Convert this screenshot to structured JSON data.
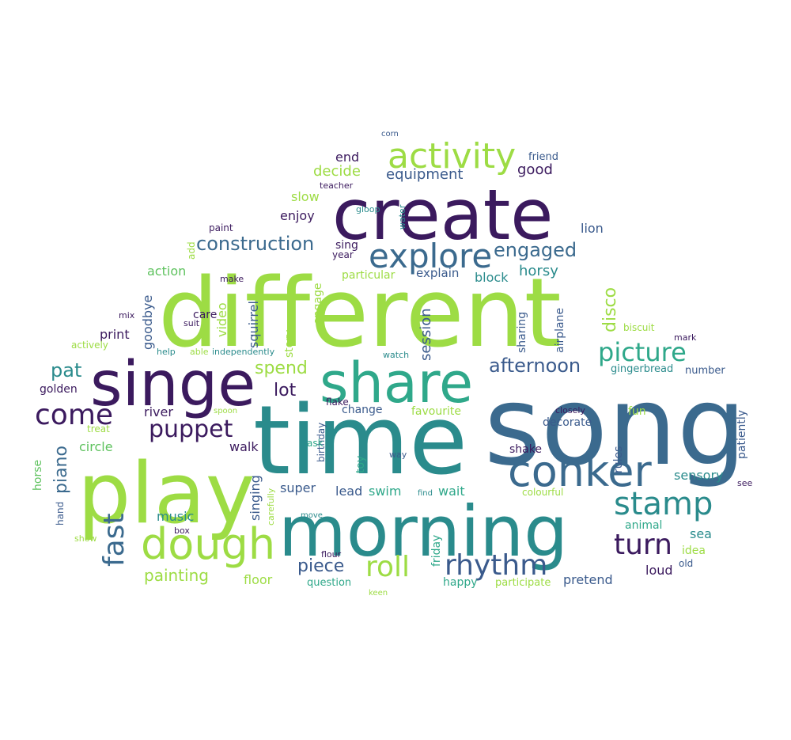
{
  "palette": {
    "dark_purple": "#3b1a5e",
    "navy": "#3a5a8c",
    "slate_blue": "#3b6a8e",
    "teal": "#2a8b8c",
    "sea_green": "#2fa88a",
    "green": "#5ec25e",
    "lime": "#9ddc44"
  },
  "words": [
    {
      "text": "different",
      "color": "#9ddc44"
    },
    {
      "text": "song",
      "color": "#3b6a8e"
    },
    {
      "text": "time",
      "color": "#2a8b8c"
    },
    {
      "text": "morning",
      "color": "#2a8b8c"
    },
    {
      "text": "create",
      "color": "#3b1a5e"
    },
    {
      "text": "play",
      "color": "#9ddc44"
    },
    {
      "text": "singe",
      "color": "#3b1a5e"
    },
    {
      "text": "share",
      "color": "#2fa88a"
    },
    {
      "text": "conker",
      "color": "#3b6a8e"
    },
    {
      "text": "dough",
      "color": "#9ddc44"
    },
    {
      "text": "activity",
      "color": "#9ddc44"
    },
    {
      "text": "explore",
      "color": "#3b6a8e"
    },
    {
      "text": "stamp",
      "color": "#2a8b8c"
    },
    {
      "text": "rhythm",
      "color": "#3a5a8c"
    },
    {
      "text": "roll",
      "color": "#9ddc44"
    },
    {
      "text": "turn",
      "color": "#3b1a5e"
    },
    {
      "text": "come",
      "color": "#3b1a5e"
    },
    {
      "text": "picture",
      "color": "#2fa88a"
    },
    {
      "text": "puppet",
      "color": "#3b1a5e"
    },
    {
      "text": "construction",
      "color": "#3b6a8e"
    },
    {
      "text": "engaged",
      "color": "#3b6a8e"
    },
    {
      "text": "fast",
      "color": "#3b6a8e"
    },
    {
      "text": "afternoon",
      "color": "#3a5a8c"
    },
    {
      "text": "equipment",
      "color": "#3a5a8c"
    },
    {
      "text": "piece",
      "color": "#3a5a8c"
    },
    {
      "text": "lot",
      "color": "#3b1a5e"
    },
    {
      "text": "spend",
      "color": "#9ddc44"
    },
    {
      "text": "pat",
      "color": "#2a8b8c"
    },
    {
      "text": "piano",
      "color": "#3b6a8e"
    },
    {
      "text": "painting",
      "color": "#9ddc44"
    },
    {
      "text": "disco",
      "color": "#9ddc44"
    },
    {
      "text": "good",
      "color": "#3b1a5e"
    },
    {
      "text": "decide",
      "color": "#9ddc44"
    },
    {
      "text": "end",
      "color": "#3b1a5e"
    },
    {
      "text": "action",
      "color": "#5ec25e"
    },
    {
      "text": "slow",
      "color": "#9ddc44"
    },
    {
      "text": "enjoy",
      "color": "#3b1a5e"
    },
    {
      "text": "lion",
      "color": "#3a5a8c"
    },
    {
      "text": "horsy",
      "color": "#2a8b8c"
    },
    {
      "text": "block",
      "color": "#2a8b8c"
    },
    {
      "text": "session",
      "color": "#3a5a8c"
    },
    {
      "text": "sing",
      "color": "#3b1a5e"
    },
    {
      "text": "year",
      "color": "#3b1a5e"
    },
    {
      "text": "explain",
      "color": "#3a5a8c"
    },
    {
      "text": "particular",
      "color": "#9ddc44"
    },
    {
      "text": "print",
      "color": "#3b1a5e"
    },
    {
      "text": "goodbye",
      "color": "#3a5a8c"
    },
    {
      "text": "video",
      "color": "#9ddc44"
    },
    {
      "text": "squirrel",
      "color": "#3a5a8c"
    },
    {
      "text": "story",
      "color": "#9ddc44"
    },
    {
      "text": "engage",
      "color": "#9ddc44"
    },
    {
      "text": "sharing",
      "color": "#3a5a8c"
    },
    {
      "text": "airplane",
      "color": "#3a5a8c"
    },
    {
      "text": "care",
      "color": "#3b1a5e"
    },
    {
      "text": "walk",
      "color": "#3b1a5e"
    },
    {
      "text": "river",
      "color": "#3b1a5e"
    },
    {
      "text": "circle",
      "color": "#5ec25e"
    },
    {
      "text": "music",
      "color": "#2a8b8c"
    },
    {
      "text": "floor",
      "color": "#9ddc44"
    },
    {
      "text": "singing",
      "color": "#3a5a8c"
    },
    {
      "text": "super",
      "color": "#3a5a8c"
    },
    {
      "text": "lead",
      "color": "#3a5a8c"
    },
    {
      "text": "swim",
      "color": "#2fa88a"
    },
    {
      "text": "wait",
      "color": "#2fa88a"
    },
    {
      "text": "favourite",
      "color": "#9ddc44"
    },
    {
      "text": "change",
      "color": "#3a5a8c"
    },
    {
      "text": "flake",
      "color": "#3b1a5e"
    },
    {
      "text": "sensory",
      "color": "#2a8b8c"
    },
    {
      "text": "sea",
      "color": "#2a8b8c"
    },
    {
      "text": "animal",
      "color": "#2fa88a"
    },
    {
      "text": "loud",
      "color": "#3b1a5e"
    },
    {
      "text": "pretend",
      "color": "#3a5a8c"
    },
    {
      "text": "patiently",
      "color": "#3a5a8c"
    },
    {
      "text": "rules",
      "color": "#3a5a8c"
    },
    {
      "text": "fun",
      "color": "#9ddc44"
    },
    {
      "text": "shake",
      "color": "#3b1a5e"
    },
    {
      "text": "decorate",
      "color": "#3a5a8c"
    },
    {
      "text": "number",
      "color": "#3a5a8c"
    },
    {
      "text": "gingerbread",
      "color": "#2a8b8c"
    },
    {
      "text": "friday",
      "color": "#2fa88a"
    },
    {
      "text": "happy",
      "color": "#2fa88a"
    },
    {
      "text": "question",
      "color": "#2fa88a"
    },
    {
      "text": "participate",
      "color": "#9ddc44"
    },
    {
      "text": "idea",
      "color": "#9ddc44"
    },
    {
      "text": "old",
      "color": "#3a5a8c"
    },
    {
      "text": "toy",
      "color": "#2fa88a"
    },
    {
      "text": "birthday",
      "color": "#3a5a8c"
    },
    {
      "text": "ask",
      "color": "#2fa88a"
    },
    {
      "text": "way",
      "color": "#3a5a8c"
    },
    {
      "text": "find",
      "color": "#2a8b8c"
    },
    {
      "text": "watch",
      "color": "#2a8b8c"
    },
    {
      "text": "closely",
      "color": "#3b1a5e"
    },
    {
      "text": "colourful",
      "color": "#9ddc44"
    },
    {
      "text": "biscuit",
      "color": "#9ddc44"
    },
    {
      "text": "mark",
      "color": "#3b1a5e"
    },
    {
      "text": "see",
      "color": "#3b1a5e"
    },
    {
      "text": "friend",
      "color": "#3a5a8c"
    },
    {
      "text": "corn",
      "color": "#3a5a8c"
    },
    {
      "text": "teacher",
      "color": "#3b1a5e"
    },
    {
      "text": "gloop",
      "color": "#2a8b8c"
    },
    {
      "text": "water",
      "color": "#2a8b8c"
    },
    {
      "text": "paint",
      "color": "#3b1a5e"
    },
    {
      "text": "add",
      "color": "#9ddc44"
    },
    {
      "text": "make",
      "color": "#3b1a5e"
    },
    {
      "text": "mix",
      "color": "#3b1a5e"
    },
    {
      "text": "suit",
      "color": "#3b1a5e"
    },
    {
      "text": "actively",
      "color": "#9ddc44"
    },
    {
      "text": "help",
      "color": "#2a8b8c"
    },
    {
      "text": "able",
      "color": "#9ddc44"
    },
    {
      "text": "independently",
      "color": "#2a8b8c"
    },
    {
      "text": "golden",
      "color": "#3b1a5e"
    },
    {
      "text": "spoon",
      "color": "#9ddc44"
    },
    {
      "text": "treat",
      "color": "#9ddc44"
    },
    {
      "text": "horse",
      "color": "#5ec25e"
    },
    {
      "text": "hand",
      "color": "#3a5a8c"
    },
    {
      "text": "show",
      "color": "#9ddc44"
    },
    {
      "text": "box",
      "color": "#3b1a5e"
    },
    {
      "text": "carefully",
      "color": "#9ddc44"
    },
    {
      "text": "move",
      "color": "#2a8b8c"
    },
    {
      "text": "flour",
      "color": "#3b1a5e"
    },
    {
      "text": "keen",
      "color": "#9ddc44"
    }
  ]
}
